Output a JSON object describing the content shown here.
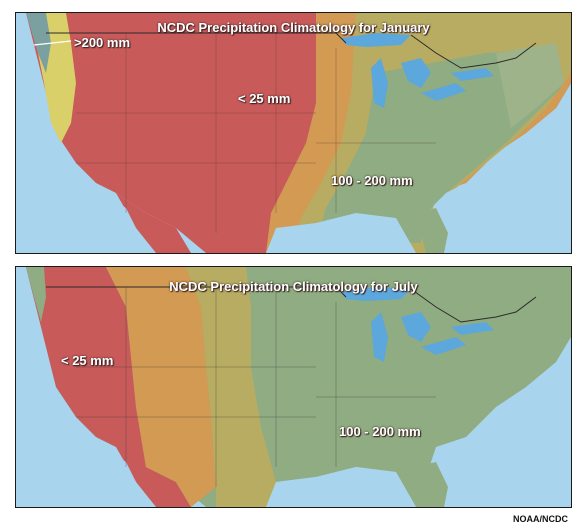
{
  "maps": [
    {
      "title": "NCDC Precipitation Climatology for January",
      "month": "January",
      "labels": [
        ">200 mm",
        "< 25 mm",
        "100 - 200 mm"
      ]
    },
    {
      "title": "NCDC Precipitation Climatology for July",
      "month": "July",
      "labels": [
        "< 25 mm",
        "100 - 200 mm"
      ]
    }
  ],
  "credit": "NOAA/NCDC",
  "colors": {
    "ocean": "#a9d4ee",
    "lakes": "#5ca7dc",
    "dry_red": "#c85a5a",
    "orange": "#d29a52",
    "olive": "#b7ac62",
    "moist_green": "#8fac82",
    "teal": "#7aa0a0",
    "wet_yellow": "#d9d06a",
    "border_line": "#2b2b2b"
  }
}
